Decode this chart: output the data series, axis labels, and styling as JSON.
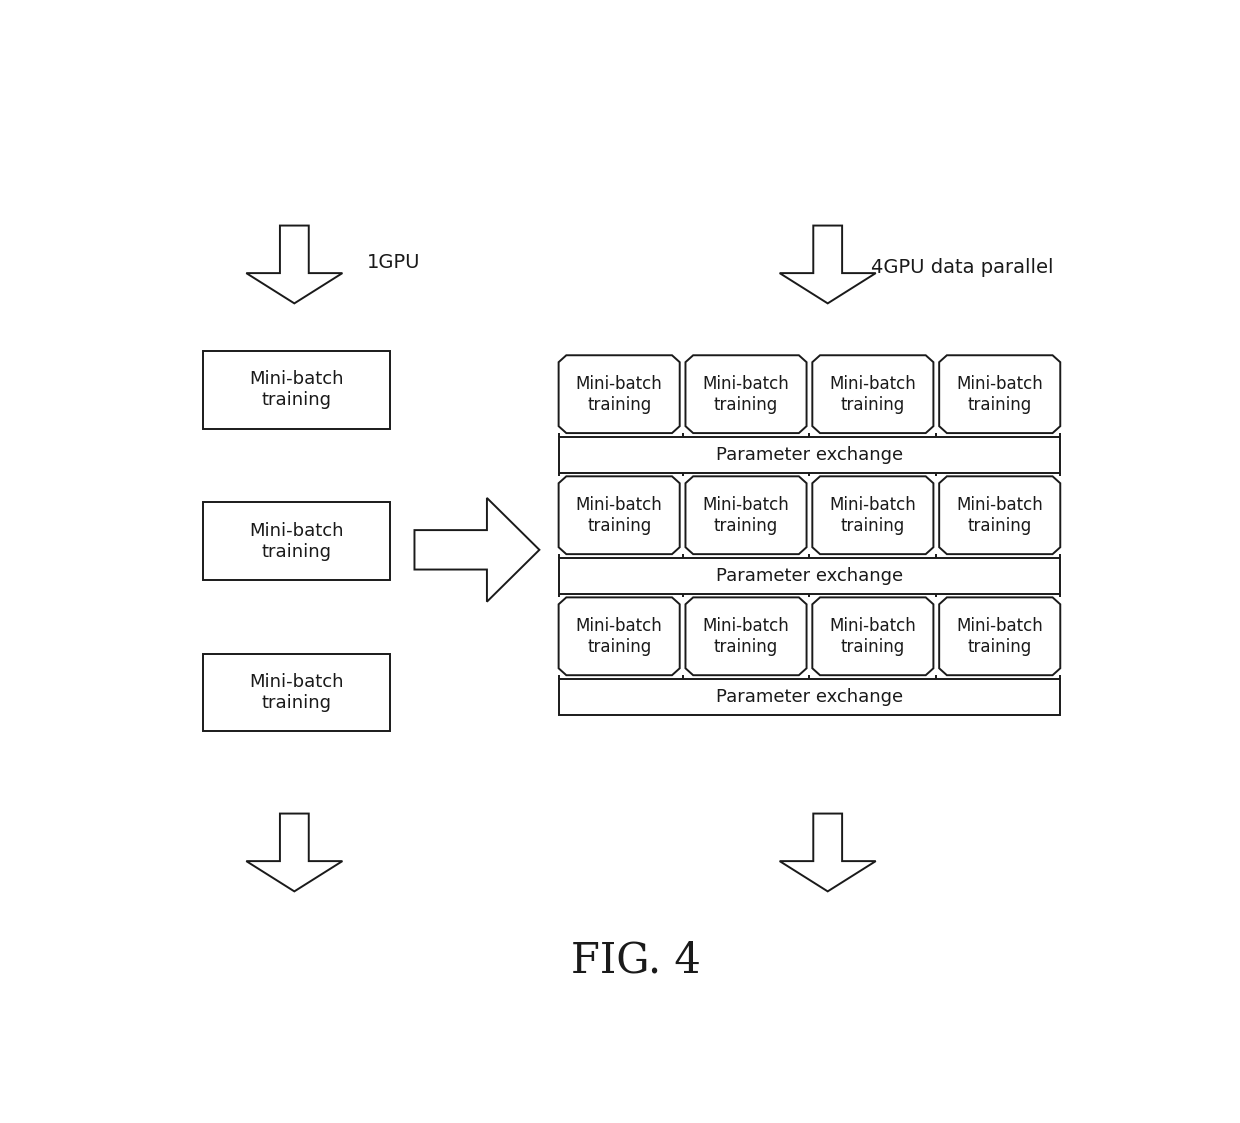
{
  "fig_label": "FIG. 4",
  "label_1gpu": "1GPU",
  "label_4gpu": "4GPU data parallel",
  "mini_batch_text": "Mini-batch\ntraining",
  "param_exchange_text": "Parameter exchange",
  "bg_color": "#ffffff",
  "box_edge_color": "#1a1a1a",
  "box_face_color": "#ffffff",
  "text_color": "#1a1a1a",
  "arrow_color": "#1a1a1a",
  "lw": 1.4
}
